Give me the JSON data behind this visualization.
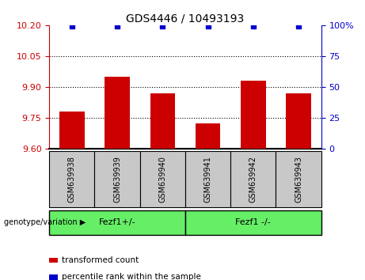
{
  "title": "GDS4446 / 10493193",
  "samples": [
    "GSM639938",
    "GSM639939",
    "GSM639940",
    "GSM639941",
    "GSM639942",
    "GSM639943"
  ],
  "bar_values": [
    9.78,
    9.95,
    9.87,
    9.72,
    9.93,
    9.87
  ],
  "percentile_values": [
    99,
    99,
    99,
    99,
    99,
    99
  ],
  "bar_color": "#cc0000",
  "percentile_color": "#0000cc",
  "ylim_left": [
    9.6,
    10.2
  ],
  "ylim_right": [
    0,
    100
  ],
  "yticks_left": [
    9.6,
    9.75,
    9.9,
    10.05,
    10.2
  ],
  "yticks_right": [
    0,
    25,
    50,
    75,
    100
  ],
  "ytick_labels_right": [
    "0",
    "25",
    "50",
    "75",
    "100%"
  ],
  "grid_lines": [
    9.75,
    9.9,
    10.05
  ],
  "groups": [
    {
      "label": "Fezf1+/-",
      "color": "#66ee66"
    },
    {
      "label": "Fezf1 -/-",
      "color": "#66ee66"
    }
  ],
  "genotype_label": "genotype/variation",
  "legend_items": [
    {
      "label": "transformed count",
      "color": "#cc0000"
    },
    {
      "label": "percentile rank within the sample",
      "color": "#0000cc"
    }
  ],
  "tick_bg_color": "#c8c8c8"
}
